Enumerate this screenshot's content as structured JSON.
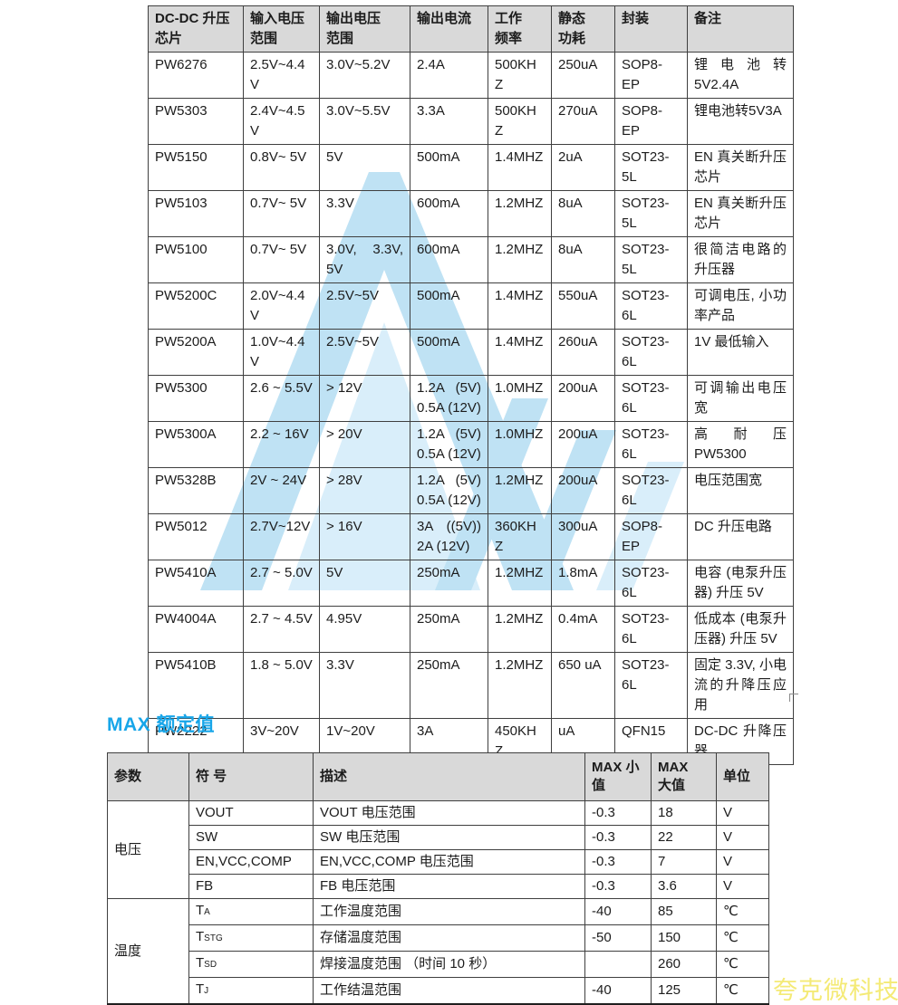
{
  "colors": {
    "header_bg": "#d9d9d9",
    "border": "#3f3f3f",
    "title_accent": "#18a6e9",
    "watermark_blue": "#bfe2f4",
    "watermark_blue_light": "#d9eefa",
    "watermark_text_yellow": "#f4ea76"
  },
  "watermark": {
    "brand_text": "夸克微科技"
  },
  "chip_table": {
    "header": [
      "DC-DC 升压\n芯片",
      "输入电压\n范围",
      "输出电压\n范围",
      "输出电流",
      "工作\n频率",
      "静态\n功耗",
      "封装",
      "备注"
    ],
    "rows": [
      {
        "chip": "PW6276",
        "vin": "2.5V~4.4V",
        "vout": "3.0V~5.2V",
        "iout": "2.4A",
        "freq": "500KHZ",
        "iq": "250uA",
        "pkg": "SOP8-EP",
        "note": "锂电池转 5V2.4A"
      },
      {
        "chip": "PW5303",
        "vin": "2.4V~4.5V",
        "vout": "3.0V~5.5V",
        "iout": "3.3A",
        "freq": "500KHZ",
        "iq": "270uA",
        "pkg": "SOP8-EP",
        "note": "锂电池转5V3A"
      },
      {
        "chip": "PW5150",
        "vin": "0.8V~ 5V",
        "vout": "5V",
        "iout": "500mA",
        "freq": "1.4MHZ",
        "iq": "2uA",
        "pkg": "SOT23-5L",
        "note": "EN 真关断升压芯片"
      },
      {
        "chip": "PW5103",
        "vin": "0.7V~ 5V",
        "vout": "3.3V",
        "iout": "600mA",
        "freq": "1.2MHZ",
        "iq": "8uA",
        "pkg": "SOT23-5L",
        "note": "EN 真关断升压芯片"
      },
      {
        "chip": "PW5100",
        "vin": "0.7V~ 5V",
        "vout": "3.0V, 3.3V, 5V",
        "iout": "600mA",
        "freq": "1.2MHZ",
        "iq": "8uA",
        "pkg": "SOT23-5L",
        "note": "很简洁电路的升压器"
      },
      {
        "chip": "PW5200C",
        "vin": "2.0V~4.4V",
        "vout": "2.5V~5V",
        "iout": "500mA",
        "freq": "1.4MHZ",
        "iq": "550uA",
        "pkg": "SOT23-6L",
        "note": "可调电压, 小功率产品"
      },
      {
        "chip": "PW5200A",
        "vin": "1.0V~4.4V",
        "vout": "2.5V~5V",
        "iout": "500mA",
        "freq": "1.4MHZ",
        "iq": "260uA",
        "pkg": "SOT23-6L",
        "note": "1V 最低输入"
      },
      {
        "chip": "PW5300",
        "vin": "2.6 ~ 5.5V",
        "vout": "> 12V",
        "iout": "1.2A (5V) 0.5A (12V)",
        "freq": "1.0MHZ",
        "iq": "200uA",
        "pkg": "SOT23-6L",
        "note": "可调输出电压宽"
      },
      {
        "chip": "PW5300A",
        "vin": "2.2 ~ 16V",
        "vout": "> 20V",
        "iout": "1.2A (5V) 0.5A (12V)",
        "freq": "1.0MHZ",
        "iq": "200uA",
        "pkg": "SOT23-6L",
        "note": "高耐压 PW5300"
      },
      {
        "chip": "PW5328B",
        "vin": "2V ~ 24V",
        "vout": "> 28V",
        "iout": "1.2A (5V) 0.5A (12V)",
        "freq": "1.2MHZ",
        "iq": "200uA",
        "pkg": "SOT23-6L",
        "note": "电压范围宽"
      },
      {
        "chip": "PW5012",
        "vin": "2.7V~12V",
        "vout": "> 16V",
        "iout": "3A ((5V)) 2A (12V)",
        "freq": "360KHZ",
        "iq": "300uA",
        "pkg": "SOP8-EP",
        "note": "DC 升压电路"
      },
      {
        "chip": "PW5410A",
        "vin": "2.7 ~ 5.0V",
        "vout": "5V",
        "iout": "250mA",
        "freq": "1.2MHZ",
        "iq": "1.8mA",
        "pkg": "SOT23-6L",
        "note": "电容 (电泵升压器) 升压 5V"
      },
      {
        "chip": "PW4004A",
        "vin": "2.7 ~ 4.5V",
        "vout": "4.95V",
        "iout": "250mA",
        "freq": "1.2MHZ",
        "iq": "0.4mA",
        "pkg": "SOT23-6L",
        "note": "低成本 (电泵升压器) 升压 5V"
      },
      {
        "chip": "PW5410B",
        "vin": "1.8 ~ 5.0V",
        "vout": "3.3V",
        "iout": "250mA",
        "freq": "1.2MHZ",
        "iq": "650 uA",
        "pkg": "SOT23-6L",
        "note": "固定 3.3V, 小电流的升降压应用"
      },
      {
        "chip": "PW2222",
        "vin": "3V~20V",
        "vout": "1V~20V",
        "iout": "3A",
        "freq": "450KHZ",
        "iq": "uA",
        "pkg": "QFN15",
        "note": "DC-DC 升降压器"
      }
    ]
  },
  "max_table": {
    "title": "MAX 额定值",
    "header": [
      "参数",
      "符 号",
      "描述",
      "MAX 小\n值",
      "MAX\n大值",
      "单位"
    ],
    "groups": [
      {
        "name": "电压",
        "rows": [
          {
            "sym": "VOUT",
            "sub": "",
            "desc": "VOUT 电压范围",
            "min": "-0.3",
            "max": "18",
            "unit": "V"
          },
          {
            "sym": "SW",
            "sub": "",
            "desc": "SW 电压范围",
            "min": "-0.3",
            "max": "22",
            "unit": "V"
          },
          {
            "sym": "EN,VCC,COMP",
            "sub": "",
            "desc": "EN,VCC,COMP 电压范围",
            "min": "-0.3",
            "max": "7",
            "unit": "V"
          },
          {
            "sym": "FB",
            "sub": "",
            "desc": "FB 电压范围",
            "min": "-0.3",
            "max": "3.6",
            "unit": "V"
          }
        ]
      },
      {
        "name": "温度",
        "rows": [
          {
            "sym": "T",
            "sub": "A",
            "desc": "工作温度范围",
            "min": "-40",
            "max": "85",
            "unit": "℃"
          },
          {
            "sym": "T",
            "sub": "STG",
            "desc": "存储温度范围",
            "min": "-50",
            "max": "150",
            "unit": "℃"
          },
          {
            "sym": "T",
            "sub": "SD",
            "desc": "焊接温度范围 （时间 10 秒）",
            "min": "",
            "max": "260",
            "unit": "℃"
          },
          {
            "sym": "T",
            "sub": "J",
            "desc": "工作结温范围",
            "min": "-40",
            "max": "125",
            "unit": "℃"
          }
        ]
      }
    ]
  }
}
